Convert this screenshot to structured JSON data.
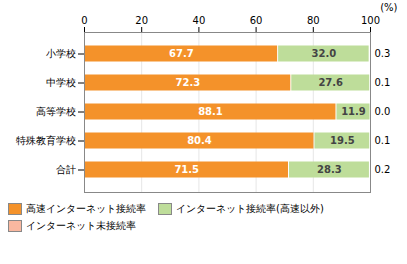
{
  "chart_data": {
    "type": "bar",
    "orientation": "horizontal",
    "stacked": true,
    "categories": [
      "小学校",
      "中学校",
      "高等学校",
      "特殊教育学校",
      "合計"
    ],
    "series": [
      {
        "name": "高速インターネット接続率",
        "color": "#F4922A",
        "values": [
          67.7,
          72.3,
          88.1,
          80.4,
          71.5
        ],
        "value_labels": [
          "67.7",
          "72.3",
          "88.1",
          "80.4",
          "71.5"
        ]
      },
      {
        "name": "インターネット接続率(高速以外)",
        "color": "#BEDD9A",
        "values": [
          32.0,
          27.6,
          11.9,
          19.5,
          28.3
        ],
        "value_labels": [
          "32.0",
          "27.6",
          "11.9",
          "19.5",
          "28.3"
        ]
      },
      {
        "name": "インターネット未接続率",
        "color": "#F9B8A0",
        "values": [
          0.3,
          0.1,
          0.0,
          0.1,
          0.2
        ],
        "value_labels": [
          "0.3",
          "0.1",
          "0.0",
          "0.1",
          "0.2"
        ]
      }
    ],
    "xlim": [
      0,
      100
    ],
    "xticks": [
      0,
      20,
      40,
      60,
      80,
      100
    ],
    "xlabel": "(%)",
    "grid": true,
    "legend": "lower left",
    "data_labels": true
  }
}
